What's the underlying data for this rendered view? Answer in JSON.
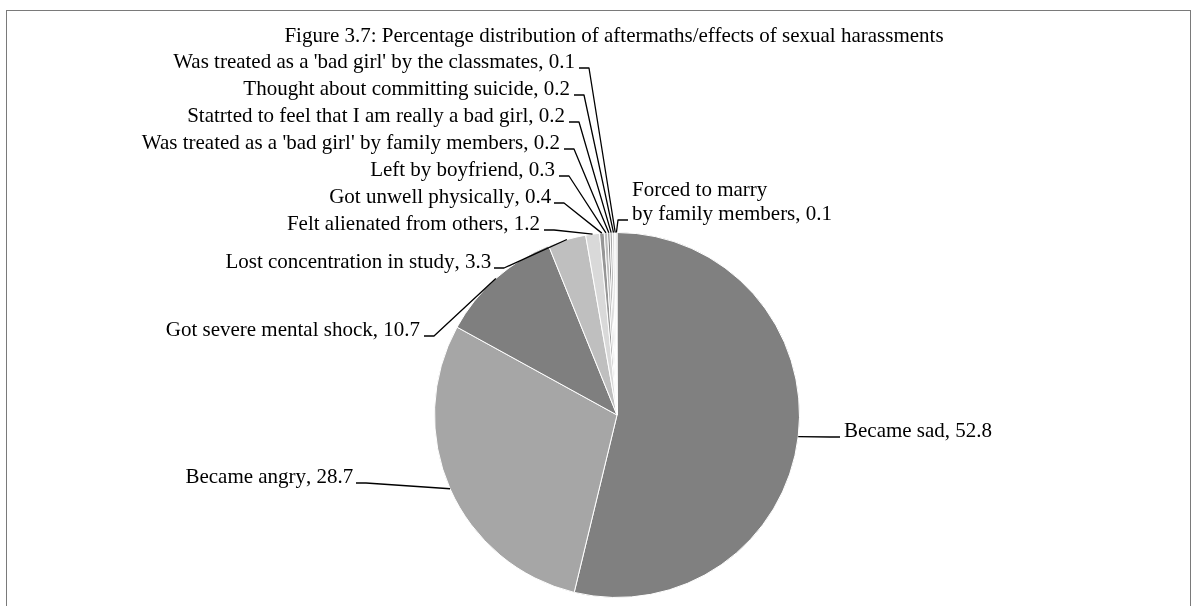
{
  "chart_data": {
    "type": "pie",
    "title": "Figure 3.7: Percentage distribution of aftermaths/effects of sexual harassments",
    "categories": [
      "Became sad",
      "Became angry",
      "Got severe mental shock",
      "Lost concentration in study",
      "Felt alienated from others",
      "Got unwell physically",
      "Left by boyfriend",
      "Was treated as a 'bad girl' by family members",
      "Statrted to feel that I am really a bad girl",
      "Thought about committing suicide",
      "Was treated as a 'bad girl' by the classmates",
      "Forced to marry by family members"
    ],
    "values": [
      52.8,
      28.7,
      10.7,
      3.3,
      1.2,
      0.4,
      0.3,
      0.2,
      0.2,
      0.2,
      0.1,
      0.1
    ],
    "value_labels": [
      ", 52.8",
      ", 28.7",
      ", 10.7",
      ", 3.3",
      ", 1.2",
      ", 0.4",
      ", 0.3",
      ", 0.2",
      ", 0.2",
      ", 0.2",
      ", 0.1",
      ", 0.1"
    ],
    "colors": [
      "#808080",
      "#a6a6a6",
      "#7f7f7f",
      "#bfbfbf",
      "#d9d9d9",
      "#969696",
      "#bdbdbd",
      "#7f7f7f",
      "#a6a6a6",
      "#d9d9d9",
      "#c0c0c0",
      "#bfbfbf"
    ],
    "legend": false
  }
}
